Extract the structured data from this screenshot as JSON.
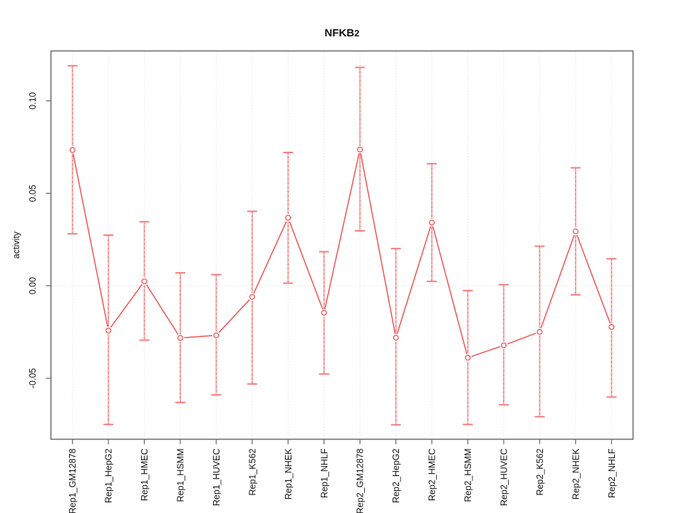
{
  "window": {
    "title": "NFKB2"
  },
  "chart_data": {
    "type": "line",
    "title": "NFKB2",
    "title_main": "NFKB",
    "title_sub": "2",
    "subtitle": "",
    "xlabel": "",
    "ylabel": "activity",
    "legend_position": "none",
    "grid": {
      "vertical_dotted_per_category": true,
      "horizontal_dotted_at": 0
    },
    "ylim": [
      -0.083,
      0.127
    ],
    "yticks": [
      0.1,
      0.05,
      0.0,
      -0.05
    ],
    "ytick_labels": [
      "0.10",
      "0.05",
      "0.00",
      "-0.05"
    ],
    "categories": [
      "Rep1_GM12878",
      "Rep1_HepG2",
      "Rep1_HMEC",
      "Rep1_HSMM",
      "Rep1_HUVEC",
      "Rep1_K562",
      "Rep1_NHEK",
      "Rep1_NHLF",
      "Rep2_GM12878",
      "Rep2_HepG2",
      "Rep2_HMEC",
      "Rep2_HSMM",
      "Rep2_HUVEC",
      "Rep2_K562",
      "Rep2_NHEK",
      "Rep2_NHLF"
    ],
    "series": [
      {
        "name": "activity",
        "marker": "open-circle",
        "values": [
          0.0734,
          -0.0242,
          0.0024,
          -0.0282,
          -0.0268,
          -0.006,
          0.0368,
          -0.0146,
          0.0737,
          -0.0281,
          0.0342,
          -0.0389,
          -0.0322,
          -0.0249,
          0.0294,
          -0.0223
        ],
        "upper": [
          0.119,
          0.0274,
          0.0346,
          0.007,
          0.006,
          0.0403,
          0.0721,
          0.0184,
          0.1181,
          0.0201,
          0.066,
          -0.0026,
          0.0006,
          0.0214,
          0.0638,
          0.0146
        ],
        "lower": [
          0.0281,
          -0.075,
          -0.0294,
          -0.0631,
          -0.059,
          -0.0531,
          0.0014,
          -0.0477,
          0.0297,
          -0.0752,
          0.0024,
          -0.075,
          -0.0644,
          -0.0708,
          -0.0049,
          -0.0602
        ]
      }
    ],
    "colors": {
      "background": "#ffffff",
      "series_line": "#ef5252",
      "marker_stroke": "#ef5252",
      "error_bar": "#ffabab",
      "error_bar_dots": "#e05f5f",
      "error_cap": "#f57d7d",
      "grid": "#d6d6d6",
      "axis": "#6e6e6e",
      "text": "#111111"
    }
  }
}
